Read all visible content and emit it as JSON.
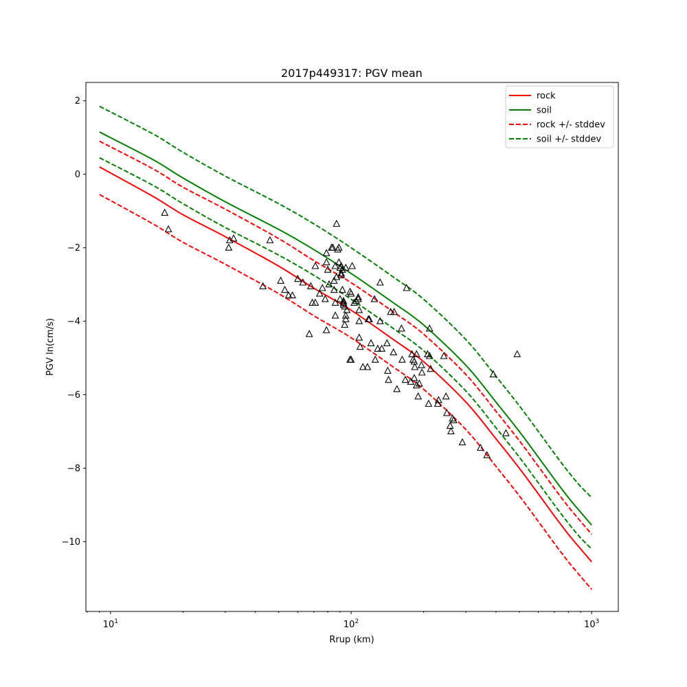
{
  "chart_data": {
    "type": "scatter",
    "title": "2017p449317: PGV mean",
    "xlabel": "Rrup (km)",
    "ylabel": "PGV ln(cm/s)",
    "xscale": "log",
    "xlim": [
      7.9,
      1290
    ],
    "ylim": [
      -11.9,
      2.5
    ],
    "x_ticks": [
      10,
      100,
      1000
    ],
    "x_tick_labels": [
      [
        "10",
        "1"
      ],
      [
        "10",
        "2"
      ],
      [
        "10",
        "3"
      ]
    ],
    "y_ticks": [
      2,
      0,
      -2,
      -4,
      -6,
      -8,
      -10
    ],
    "y_tick_labels": [
      "2",
      "0",
      "−2",
      "−4",
      "−6",
      "−8",
      "−10"
    ],
    "grid": false,
    "legend_placement": "top-right",
    "series": [
      {
        "name": "rock",
        "color": "#ff0000",
        "style": "solid",
        "x": [
          9,
          15,
          20,
          30,
          50,
          70,
          100,
          150,
          200,
          300,
          400,
          500,
          600,
          700,
          800,
          900,
          1000
        ],
        "y": [
          0.2,
          -0.6,
          -1.1,
          -1.7,
          -2.5,
          -3.1,
          -3.7,
          -4.5,
          -5.1,
          -6.2,
          -7.2,
          -8.0,
          -8.7,
          -9.3,
          -9.8,
          -10.2,
          -10.55
        ]
      },
      {
        "name": "soil",
        "color": "#008000",
        "style": "solid",
        "x": [
          9,
          15,
          20,
          30,
          50,
          70,
          100,
          150,
          200,
          300,
          400,
          500,
          600,
          700,
          800,
          900,
          1000
        ],
        "y": [
          1.15,
          0.4,
          -0.1,
          -0.75,
          -1.5,
          -2.05,
          -2.7,
          -3.5,
          -4.1,
          -5.2,
          -6.2,
          -7.0,
          -7.7,
          -8.3,
          -8.8,
          -9.2,
          -9.55
        ]
      },
      {
        "name": "rock +/- stddev",
        "color": "#ff0000",
        "style": "dashed",
        "x": [
          9,
          15,
          20,
          30,
          50,
          70,
          100,
          150,
          200,
          300,
          400,
          500,
          600,
          700,
          800,
          900,
          1000
        ],
        "y": [
          0.9,
          0.15,
          -0.35,
          -0.95,
          -1.75,
          -2.35,
          -2.95,
          -3.75,
          -4.35,
          -5.45,
          -6.45,
          -7.25,
          -7.95,
          -8.55,
          -9.05,
          -9.45,
          -9.8
        ]
      },
      {
        "name": "",
        "color": "#ff0000",
        "style": "dashed",
        "x": [
          9,
          15,
          20,
          30,
          50,
          70,
          100,
          150,
          200,
          300,
          400,
          500,
          600,
          700,
          800,
          900,
          1000
        ],
        "y": [
          -0.55,
          -1.35,
          -1.85,
          -2.45,
          -3.25,
          -3.85,
          -4.45,
          -5.25,
          -5.85,
          -6.95,
          -7.95,
          -8.75,
          -9.45,
          -10.05,
          -10.55,
          -10.95,
          -11.3
        ]
      },
      {
        "name": "soil +/- stddev",
        "color": "#008000",
        "style": "dashed",
        "x": [
          9,
          15,
          20,
          30,
          50,
          70,
          100,
          150,
          200,
          300,
          400,
          500,
          600,
          700,
          800,
          900,
          1000
        ],
        "y": [
          1.85,
          1.1,
          0.6,
          -0.05,
          -0.8,
          -1.35,
          -2.0,
          -2.8,
          -3.4,
          -4.5,
          -5.5,
          -6.3,
          -7.0,
          -7.6,
          -8.1,
          -8.5,
          -8.8
        ]
      },
      {
        "name": "",
        "color": "#008000",
        "style": "dashed",
        "x": [
          9,
          15,
          20,
          30,
          50,
          70,
          100,
          150,
          200,
          300,
          400,
          500,
          600,
          700,
          800,
          900,
          1000
        ],
        "y": [
          0.45,
          -0.3,
          -0.8,
          -1.45,
          -2.2,
          -2.75,
          -3.4,
          -4.2,
          -4.8,
          -5.9,
          -6.9,
          -7.7,
          -8.4,
          -9.0,
          -9.5,
          -9.9,
          -10.2
        ]
      }
    ],
    "observations": {
      "marker": "triangle",
      "color": "#000000",
      "x": [
        16.8,
        17.4,
        31,
        31.3,
        32.5,
        43,
        46,
        51,
        53,
        55,
        57,
        60,
        63,
        67,
        68,
        69,
        71,
        71,
        74,
        76,
        78,
        79,
        79,
        79,
        80,
        81,
        83,
        84,
        85,
        85,
        86,
        86,
        86,
        87,
        87,
        88,
        89,
        89,
        90,
        90,
        91,
        91,
        91,
        92,
        92,
        93,
        93,
        93,
        94,
        94,
        95,
        95,
        95,
        96,
        99,
        99,
        100,
        100,
        101,
        103,
        105,
        107,
        107,
        108,
        108,
        108,
        109,
        112,
        117,
        118,
        119,
        121,
        125,
        126,
        129,
        132,
        132,
        134,
        141,
        142,
        143,
        146,
        150,
        151,
        155,
        162,
        163,
        168,
        170,
        177,
        179,
        181,
        183,
        183,
        184,
        187,
        187,
        190,
        192,
        196,
        197,
        208,
        210,
        212,
        212,
        214,
        229,
        231,
        243,
        248,
        250,
        258,
        260,
        264,
        267,
        290,
        345,
        367,
        390,
        440,
        490
      ],
      "y": [
        -1.05,
        -1.5,
        -2.0,
        -1.8,
        -1.75,
        -3.05,
        -1.8,
        -2.9,
        -3.15,
        -3.3,
        -3.3,
        -2.85,
        -2.95,
        -4.35,
        -3.05,
        -3.5,
        -2.5,
        -3.5,
        -3.25,
        -3.1,
        -3.4,
        -2.15,
        -2.4,
        -4.25,
        -2.6,
        -3.0,
        -2.0,
        -2.0,
        -2.9,
        -3.15,
        -2.5,
        -3.5,
        -3.85,
        -1.35,
        -2.8,
        -2.05,
        -2.4,
        -2.0,
        -3.4,
        -2.55,
        -2.7,
        -2.75,
        -2.5,
        -3.15,
        -2.6,
        -3.45,
        -3.5,
        -3.55,
        -4.1,
        -3.6,
        -2.55,
        -3.85,
        -3.95,
        -3.7,
        -5.05,
        -3.2,
        -3.25,
        -5.05,
        -2.5,
        -3.5,
        -3.45,
        -3.35,
        -3.4,
        -3.7,
        -4.0,
        -4.45,
        -4.7,
        -5.25,
        -5.25,
        -3.95,
        -3.95,
        -4.6,
        -3.4,
        -5.05,
        -4.75,
        -4.0,
        -2.95,
        -4.75,
        -4.6,
        -5.35,
        -5.6,
        -3.75,
        -4.85,
        -3.75,
        -5.85,
        -4.2,
        -5.05,
        -5.6,
        -3.1,
        -5.65,
        -4.9,
        -5.05,
        -5.1,
        -5.55,
        -5.25,
        -4.9,
        -5.75,
        -6.05,
        -5.7,
        -5.2,
        -5.4,
        -4.9,
        -6.25,
        -4.95,
        -4.2,
        -5.3,
        -6.25,
        -6.15,
        -4.95,
        -6.05,
        -6.5,
        -6.85,
        -7.0,
        -6.65,
        -6.7,
        -7.3,
        -7.45,
        -7.65,
        -5.45,
        -7.05,
        -4.9
      ]
    }
  }
}
